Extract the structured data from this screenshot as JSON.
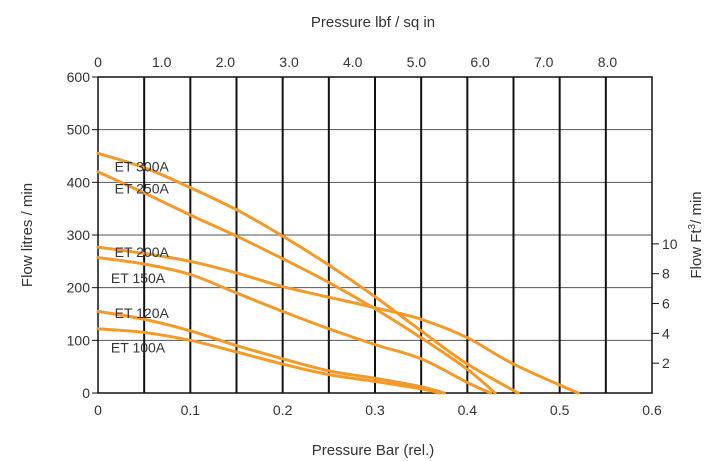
{
  "chart_data": {
    "type": "line",
    "colors": {
      "series": "#f39a2a",
      "grid": "#111111",
      "text": "#333333"
    },
    "bottom_axis": {
      "title": "Pressure Bar (rel.)",
      "ticks": [
        {
          "v": 0,
          "label": "0"
        },
        {
          "v": 0.1,
          "label": "0.1"
        },
        {
          "v": 0.2,
          "label": "0.2"
        },
        {
          "v": 0.3,
          "label": "0.3"
        },
        {
          "v": 0.4,
          "label": "0.4"
        },
        {
          "v": 0.5,
          "label": "0.5"
        },
        {
          "v": 0.6,
          "label": "0.6"
        }
      ],
      "range": [
        0,
        0.6
      ]
    },
    "top_axis": {
      "title": "Pressure lbf / sq in",
      "ticks": [
        {
          "v": 0,
          "label": "0"
        },
        {
          "v": 1.0,
          "label": "1.0"
        },
        {
          "v": 2.0,
          "label": "2.0"
        },
        {
          "v": 3.0,
          "label": "3.0"
        },
        {
          "v": 4.0,
          "label": "4.0"
        },
        {
          "v": 5.0,
          "label": "5.0"
        },
        {
          "v": 6.0,
          "label": "6.0"
        },
        {
          "v": 7.0,
          "label": "7.0"
        },
        {
          "v": 8.0,
          "label": "8.0"
        }
      ],
      "range": [
        0,
        8.7
      ]
    },
    "left_axis": {
      "title": "Flow litres / min",
      "ticks": [
        {
          "v": 0,
          "label": "0"
        },
        {
          "v": 100,
          "label": "100"
        },
        {
          "v": 200,
          "label": "200"
        },
        {
          "v": 300,
          "label": "300"
        },
        {
          "v": 400,
          "label": "400"
        },
        {
          "v": 500,
          "label": "500"
        },
        {
          "v": 600,
          "label": "600"
        }
      ],
      "range": [
        0,
        600
      ]
    },
    "right_axis": {
      "title_prefix": "Flow  Ft",
      "title_sup": "3",
      "title_suffix": "/ min",
      "ticks": [
        {
          "v": 2,
          "label": "2"
        },
        {
          "v": 4,
          "label": "4"
        },
        {
          "v": 6,
          "label": "6"
        },
        {
          "v": 8,
          "label": "8"
        },
        {
          "v": 10,
          "label": "10"
        }
      ],
      "range": [
        0,
        21.19
      ]
    },
    "vertical_grid_bar": [
      0.05,
      0.1,
      0.15,
      0.2,
      0.25,
      0.3,
      0.35,
      0.4,
      0.45,
      0.5,
      0.55
    ],
    "horizontal_grid_flow": [
      100,
      200,
      300,
      400,
      500
    ],
    "series": [
      {
        "name": "ET 300A",
        "label_at": [
          0.018,
          430
        ],
        "points": [
          [
            0,
            455
          ],
          [
            0.05,
            428
          ],
          [
            0.1,
            390
          ],
          [
            0.15,
            348
          ],
          [
            0.2,
            298
          ],
          [
            0.25,
            243
          ],
          [
            0.3,
            183
          ],
          [
            0.35,
            118
          ],
          [
            0.4,
            55
          ],
          [
            0.455,
            0
          ]
        ]
      },
      {
        "name": "ET 250A",
        "label_at": [
          0.018,
          388
        ],
        "points": [
          [
            0,
            420
          ],
          [
            0.05,
            380
          ],
          [
            0.1,
            338
          ],
          [
            0.15,
            298
          ],
          [
            0.2,
            255
          ],
          [
            0.25,
            210
          ],
          [
            0.3,
            160
          ],
          [
            0.35,
            105
          ],
          [
            0.4,
            45
          ],
          [
            0.43,
            0
          ]
        ]
      },
      {
        "name": "ET 200A",
        "label_at": [
          0.018,
          268
        ],
        "points": [
          [
            0,
            277
          ],
          [
            0.05,
            265
          ],
          [
            0.1,
            250
          ],
          [
            0.15,
            228
          ],
          [
            0.2,
            202
          ],
          [
            0.25,
            182
          ],
          [
            0.3,
            162
          ],
          [
            0.35,
            140
          ],
          [
            0.4,
            105
          ],
          [
            0.45,
            55
          ],
          [
            0.52,
            0
          ]
        ]
      },
      {
        "name": "ET 150A",
        "label_at": [
          0.014,
          218
        ],
        "points": [
          [
            0,
            257
          ],
          [
            0.05,
            245
          ],
          [
            0.1,
            225
          ],
          [
            0.15,
            190
          ],
          [
            0.2,
            155
          ],
          [
            0.25,
            122
          ],
          [
            0.3,
            92
          ],
          [
            0.35,
            65
          ],
          [
            0.4,
            20
          ],
          [
            0.425,
            0
          ]
        ]
      },
      {
        "name": "ET 120A",
        "label_at": [
          0.018,
          152
        ],
        "points": [
          [
            0,
            155
          ],
          [
            0.05,
            140
          ],
          [
            0.1,
            118
          ],
          [
            0.15,
            90
          ],
          [
            0.2,
            65
          ],
          [
            0.25,
            42
          ],
          [
            0.3,
            28
          ],
          [
            0.35,
            12
          ],
          [
            0.375,
            0
          ]
        ]
      },
      {
        "name": "ET 100A",
        "label_at": [
          0.014,
          86
        ],
        "points": [
          [
            0,
            122
          ],
          [
            0.05,
            115
          ],
          [
            0.1,
            100
          ],
          [
            0.15,
            78
          ],
          [
            0.2,
            55
          ],
          [
            0.25,
            35
          ],
          [
            0.3,
            22
          ],
          [
            0.35,
            8
          ],
          [
            0.37,
            0
          ]
        ]
      }
    ]
  }
}
